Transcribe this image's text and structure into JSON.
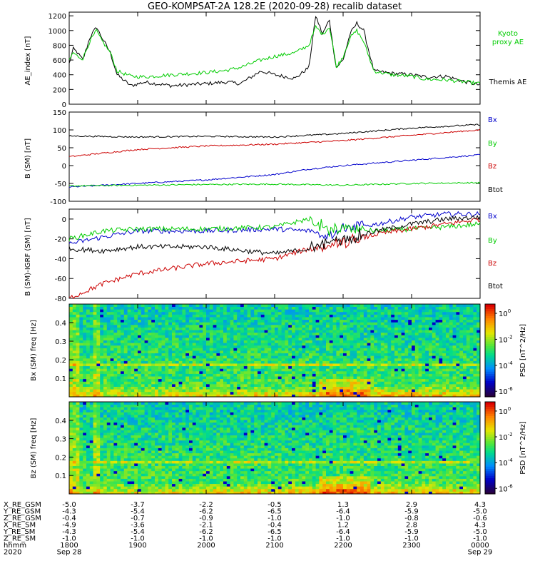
{
  "figure": {
    "title": "GEO-KOMPSAT-2A 128.2E (2020-09-28) recalib dataset",
    "bottom_labels": {
      "rows": [
        {
          "label": "X_RE_GSM",
          "values": [
            "-5.0",
            "-3.7",
            "-2.2",
            "-0.5",
            "1.3",
            "2.9",
            "4.3"
          ]
        },
        {
          "label": "Y_RE_GSM",
          "values": [
            "-4.3",
            "-5.4",
            "-6.2",
            "-6.5",
            "-6.4",
            "-5.9",
            "-5.0"
          ]
        },
        {
          "label": "Z_RE_GSM",
          "values": [
            "-0.4",
            "-0.7",
            "-0.9",
            "-1.0",
            "-1.0",
            "-0.8",
            "-0.6"
          ]
        },
        {
          "label": "X_RE_SM",
          "values": [
            "-4.9",
            "-3.6",
            "-2.1",
            "-0.4",
            "1.2",
            "2.8",
            "4.3"
          ]
        },
        {
          "label": "Y_RE_SM",
          "values": [
            "-4.3",
            "-5.4",
            "-6.2",
            "-6.5",
            "-6.4",
            "-5.9",
            "-5.0"
          ]
        },
        {
          "label": "Z_RE_SM",
          "values": [
            "-1.0",
            "-1.0",
            "-1.0",
            "-1.0",
            "-1.0",
            "-1.0",
            "-1.0"
          ]
        },
        {
          "label": "hhmm",
          "values": [
            "1800",
            "1900",
            "2000",
            "2100",
            "2200",
            "2300",
            "0000"
          ]
        },
        {
          "label": "2020",
          "values": [
            "Sep 28",
            "",
            "",
            "",
            "",
            "",
            "Sep 29"
          ]
        }
      ]
    }
  },
  "chart_data": [
    {
      "type": "line",
      "ylabel": "AE_index [nT]",
      "ylim": [
        0,
        1250
      ],
      "yticks": [
        "0",
        "200",
        "400",
        "600",
        "800",
        "1000",
        "1200"
      ],
      "x_unit": "hours UT since 2020-09-28 18:00 (18:00-24:00)",
      "xlim": [
        0,
        6
      ],
      "series": [
        {
          "name": "Themis AE",
          "color": "#000000",
          "x": [
            0,
            0.06,
            0.12,
            0.2,
            0.3,
            0.4,
            0.45,
            0.6,
            0.7,
            0.9,
            1.1,
            1.5,
            2.0,
            2.3,
            2.5,
            2.8,
            3.0,
            3.3,
            3.5,
            3.6,
            3.7,
            3.8,
            3.85,
            3.9,
            4.0,
            4.1,
            4.2,
            4.3,
            4.45,
            4.7,
            5.0,
            5.2,
            5.5,
            5.8,
            6.0
          ],
          "values": [
            550,
            750,
            700,
            600,
            900,
            1050,
            950,
            700,
            400,
            250,
            300,
            250,
            280,
            300,
            280,
            450,
            400,
            350,
            500,
            1200,
            950,
            1150,
            800,
            500,
            600,
            950,
            1100,
            1000,
            450,
            420,
            400,
            370,
            380,
            300,
            260
          ]
        },
        {
          "name": "Kyoto proxy AE",
          "color": "#00cc00",
          "x": [
            0,
            0.06,
            0.12,
            0.2,
            0.3,
            0.4,
            0.45,
            0.6,
            0.7,
            0.9,
            1.1,
            1.5,
            2.0,
            2.3,
            2.5,
            2.8,
            3.0,
            3.3,
            3.5,
            3.6,
            3.7,
            3.8,
            3.85,
            3.9,
            4.0,
            4.1,
            4.2,
            4.3,
            4.45,
            4.7,
            5.0,
            5.2,
            5.5,
            5.8,
            6.0
          ],
          "values": [
            600,
            700,
            650,
            620,
            850,
            1000,
            900,
            700,
            450,
            380,
            370,
            400,
            430,
            460,
            500,
            600,
            650,
            700,
            800,
            1050,
            950,
            1050,
            800,
            500,
            650,
            900,
            1000,
            850,
            450,
            400,
            380,
            340,
            330,
            300,
            280
          ]
        }
      ]
    },
    {
      "type": "line",
      "ylabel": "B (SM) [nT]",
      "ylim": [
        -100,
        150
      ],
      "yticks": [
        "-100",
        "-50",
        "0",
        "50",
        "100",
        "150"
      ],
      "xlim": [
        0,
        6
      ],
      "series": [
        {
          "name": "Bx",
          "color": "#0000cc",
          "x": [
            0,
            1,
            2,
            3,
            3.5,
            4,
            5,
            6
          ],
          "values": [
            -60,
            -50,
            -40,
            -25,
            -10,
            0,
            15,
            30
          ]
        },
        {
          "name": "By",
          "color": "#00cc00",
          "x": [
            0,
            1,
            2,
            3,
            4,
            5,
            6
          ],
          "values": [
            -57,
            -55,
            -53,
            -52,
            -55,
            -50,
            -48
          ]
        },
        {
          "name": "Bz",
          "color": "#cc0000",
          "x": [
            0,
            1,
            2,
            3,
            4,
            5,
            6
          ],
          "values": [
            25,
            45,
            55,
            60,
            70,
            85,
            100
          ]
        },
        {
          "name": "Btot",
          "color": "#000000",
          "x": [
            0,
            1,
            2,
            3,
            4,
            5,
            6
          ],
          "values": [
            83,
            80,
            82,
            80,
            90,
            105,
            115
          ]
        }
      ]
    },
    {
      "type": "line",
      "ylabel": "B (SM)-IGRF (SM) [nT]",
      "ylim": [
        -80,
        10
      ],
      "yticks": [
        "-80",
        "-60",
        "-40",
        "-20",
        "0"
      ],
      "xlim": [
        0,
        6
      ],
      "series": [
        {
          "name": "Bx",
          "color": "#0000cc",
          "x": [
            0,
            0.5,
            1,
            2,
            3,
            3.5,
            3.8,
            4,
            4.5,
            5,
            5.5,
            6
          ],
          "values": [
            -25,
            -18,
            -12,
            -12,
            -10,
            -12,
            -15,
            -10,
            -5,
            2,
            5,
            5
          ]
        },
        {
          "name": "By",
          "color": "#00cc00",
          "x": [
            0,
            0.5,
            1,
            2,
            3,
            3.5,
            3.8,
            4,
            4.5,
            5,
            5.5,
            6
          ],
          "values": [
            -20,
            -12,
            -10,
            -10,
            -8,
            0,
            -12,
            -10,
            -12,
            -10,
            -8,
            -5
          ]
        },
        {
          "name": "Bz",
          "color": "#cc0000",
          "x": [
            0,
            0.5,
            1,
            2,
            3,
            3.5,
            4,
            4.5,
            5,
            5.5,
            6
          ],
          "values": [
            -80,
            -65,
            -55,
            -45,
            -40,
            -30,
            -25,
            -15,
            -10,
            -5,
            0
          ]
        },
        {
          "name": "Btot",
          "color": "#000000",
          "x": [
            0,
            0.5,
            1,
            2,
            3,
            3.5,
            4,
            4.5,
            5,
            5.5,
            6
          ],
          "values": [
            -30,
            -32,
            -28,
            -28,
            -35,
            -30,
            -20,
            -12,
            -5,
            0,
            2
          ]
        }
      ]
    },
    {
      "type": "heatmap",
      "ylabel": "Bx (SM) freq [Hz]",
      "ylim": [
        0,
        0.5
      ],
      "yticks": [
        "0.1",
        "0.2",
        "0.3",
        "0.4"
      ],
      "colorbar_label": "PSD [nT^2/Hz]",
      "colorbar_ticks": [
        "10^0",
        "10^-2",
        "10^-4",
        "10^-6"
      ]
    },
    {
      "type": "heatmap",
      "ylabel": "Bz (SM) freq [Hz]",
      "ylim": [
        0,
        0.5
      ],
      "yticks": [
        "0.1",
        "0.2",
        "0.3",
        "0.4"
      ],
      "colorbar_label": "PSD [nT^2/Hz]",
      "colorbar_ticks": [
        "10^0",
        "10^-2",
        "10^-4",
        "10^-6"
      ]
    }
  ]
}
